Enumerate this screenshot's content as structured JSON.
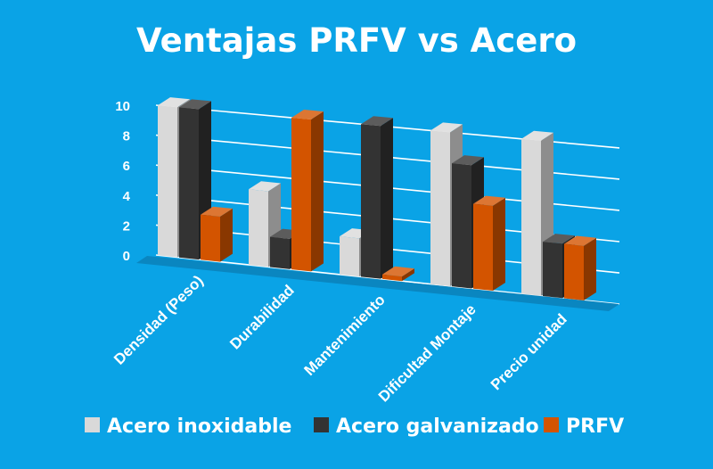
{
  "chart_data": {
    "type": "bar",
    "title": "Ventajas PRFV vs Acero",
    "xlabel": "",
    "ylabel": "",
    "categories": [
      "Densidad (Peso)",
      "Durabilidad",
      "Mantenimiento",
      "Dificultad Montaje",
      "Precio unidad"
    ],
    "yticks": [
      "0",
      "2",
      "4",
      "6",
      "8",
      "10"
    ],
    "ylim": [
      0,
      10
    ],
    "grid": true,
    "legend_position": "bottom",
    "series": [
      {
        "name": "Acero inoxidable",
        "values": [
          10,
          5,
          2.5,
          10,
          10
        ],
        "color": "#d9d9d9"
      },
      {
        "name": "Acero galvanizado",
        "values": [
          10,
          2,
          10,
          8,
          3.5
        ],
        "color": "#333333"
      },
      {
        "name": "PRFV",
        "values": [
          3,
          10,
          0.3,
          5.5,
          3.5
        ],
        "color": "#d35400"
      }
    ]
  }
}
